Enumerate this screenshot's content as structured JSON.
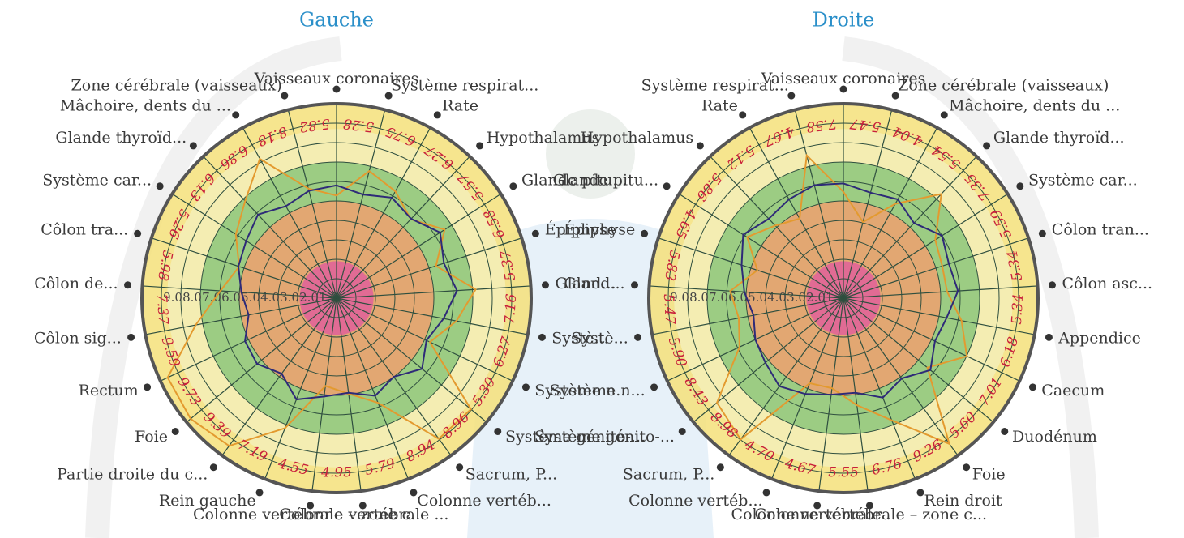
{
  "chart_data": [
    {
      "type": "radar",
      "title": "Gauche",
      "categories": [
        "Vaisseaux coronaires",
        "Système respirat...",
        "Rate",
        "Hypothalamus",
        "Glande pitu...",
        "Épiphyse",
        "Gland...",
        "Systè...",
        "Système n...",
        "Système génito-...",
        "Sacrum, P...",
        "Colonne vertéb...",
        "Colonne vertébrale ...",
        "Colonne vertébrale – zone c...",
        "Rein gauche",
        "Partie droite du c...",
        "Foie",
        "Rectum",
        "Côlon sig...",
        "Côlon de...",
        "Côlon tra...",
        "Système car...",
        "Glande thyroïd...",
        "Mâchoire, dents du ...",
        "Zone cérébrale (vaisseaux)"
      ],
      "series": [
        {
          "color": "#e39a2f",
          "values": [
            5.28,
            6.75,
            6.27,
            5.57,
            6.58,
            5.37,
            7.16,
            6.27,
            5.3,
            8.96,
            8.94,
            5.79,
            4.95,
            4.55,
            7.19,
            9.39,
            9.73,
            9.59,
            7.37,
            5.98,
            5.26,
            6.13,
            6.86,
            8.18,
            5.82
          ],
          "value_labels": [
            "5.28",
            "6.75",
            "6.27",
            "5.57",
            "6.58",
            "5.37",
            "7.16",
            "6.27",
            "5.30",
            "8.96",
            "8.94",
            "5.79",
            "4.95",
            "4.55",
            "7.19",
            "9.39",
            "9.73",
            "9.59",
            "7.37",
            "5.98",
            "5.26",
            "6.13",
            "6.86",
            "8.18",
            "5.82"
          ]
        },
        {
          "color": "#2e2a78",
          "values": [
            5.8,
            5.5,
            5.9,
            5.6,
            6.3,
            5.8,
            6.2,
            5.6,
            5.1,
            5.7,
            5.0,
            5.4,
            4.9,
            5.1,
            5.6,
            4.8,
            5.3,
            5.2,
            4.6,
            4.9,
            5.3,
            5.5,
            5.9,
            5.4,
            5.7
          ]
        }
      ],
      "rlim": [
        0,
        10
      ],
      "rticks": [
        {
          "value": 1,
          "label": "1.0"
        },
        {
          "value": 2,
          "label": "2.0"
        },
        {
          "value": 3,
          "label": "3.0"
        },
        {
          "value": 4,
          "label": "4.0"
        },
        {
          "value": 5,
          "label": "5.0"
        },
        {
          "value": 6,
          "label": "6.0"
        },
        {
          "value": 7,
          "label": "7.0"
        },
        {
          "value": 8,
          "label": "8.0"
        },
        {
          "value": 9,
          "label": "9.0"
        }
      ]
    },
    {
      "type": "radar",
      "title": "Droite",
      "categories": [
        "Vaisseaux coronaires",
        "Zone cérébrale (vaisseaux)",
        "Mâchoire, dents du ...",
        "Glande thyroïd...",
        "Système car...",
        "Côlon tran...",
        "Côlon asc...",
        "Appendice",
        "Caecum",
        "Duodénum",
        "Foie",
        "Rein droit",
        "Colonne vertébrale – zone c...",
        "Colonne vertébrale ...",
        "Colonne vertéb...",
        "Sacrum, P...",
        "Système génito-...",
        "Système n...",
        "Systè...",
        "Gland...",
        "Épiphyse",
        "Glande pitu...",
        "Hypothalamus",
        "Rate",
        "Système respirat..."
      ],
      "series": [
        {
          "color": "#e39a2f",
          "values": [
            5.47,
            4.04,
            5.54,
            7.35,
            5.59,
            5.34,
            5.34,
            6.18,
            7.01,
            5.6,
            9.26,
            6.76,
            5.55,
            4.67,
            4.7,
            8.98,
            8.43,
            5.9,
            5.47,
            5.83,
            4.65,
            5.86,
            5.12,
            4.67,
            7.58
          ],
          "value_labels": [
            "5.47",
            "4.04",
            "5.54",
            "7.35",
            "5.59",
            "5.34",
            "5.34",
            "6.18",
            "7.01",
            "5.60",
            "9.26",
            "6.76",
            "5.55",
            "4.67",
            "4.70",
            "8.98",
            "8.43",
            "5.90",
            "5.47",
            "5.83",
            "4.65",
            "5.86",
            "5.12",
            "4.67",
            "7.58"
          ]
        },
        {
          "color": "#2e2a78",
          "values": [
            5.9,
            5.6,
            5.8,
            5.3,
            6.0,
            5.7,
            5.9,
            5.4,
            5.2,
            5.8,
            5.1,
            5.5,
            4.9,
            5.0,
            5.3,
            5.6,
            5.2,
            5.0,
            4.7,
            5.1,
            5.5,
            6.1,
            5.6,
            5.8,
            6.0
          ]
        }
      ],
      "rlim": [
        0,
        10
      ],
      "rticks": [
        {
          "value": 1,
          "label": "1.0"
        },
        {
          "value": 2,
          "label": "2.0"
        },
        {
          "value": 3,
          "label": "3.0"
        },
        {
          "value": 4,
          "label": "4.0"
        },
        {
          "value": 5,
          "label": "5.0"
        },
        {
          "value": 6,
          "label": "6.0"
        },
        {
          "value": 7,
          "label": "7.0"
        },
        {
          "value": 8,
          "label": "8.0"
        },
        {
          "value": 9,
          "label": "9.0"
        }
      ]
    }
  ]
}
